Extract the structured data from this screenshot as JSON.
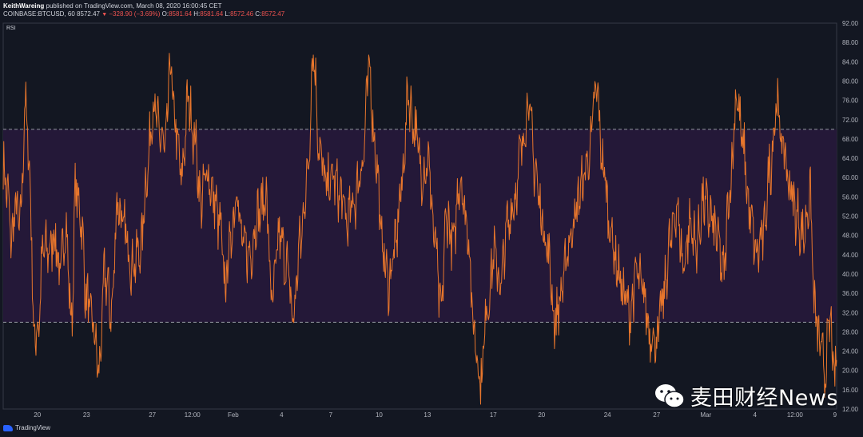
{
  "header": {
    "author": "KeithWareing",
    "published": "published on TradingView.com, March 08, 2020 16:00:45 CET",
    "symbol": "COINBASE:BTCUSD, 60",
    "price": "8572.47",
    "change": "−328.90 (−3.69%)",
    "o_label": "O:",
    "o": "8581.64",
    "h_label": "H:",
    "h": "8581.64",
    "l_label": "L:",
    "l": "8572.46",
    "c_label": "C:",
    "c": "8572.47"
  },
  "indicator_label": "RSI",
  "footer_logo": "TradingView",
  "watermark": "麦田财经News",
  "colors": {
    "background": "#131722",
    "band": "#241838",
    "line": "#e8762c",
    "axis_text": "#b2b5be"
  },
  "chart_data": {
    "type": "line",
    "title": "",
    "xlabel": "",
    "ylabel": "",
    "ylim": [
      12,
      92
    ],
    "yticks": [
      "92.00",
      "88.00",
      "84.00",
      "80.00",
      "76.00",
      "72.00",
      "68.00",
      "64.00",
      "60.00",
      "56.00",
      "52.00",
      "48.00",
      "44.00",
      "40.00",
      "36.00",
      "32.00",
      "28.00",
      "24.00",
      "20.00",
      "16.00",
      "12.00"
    ],
    "band": [
      30,
      70
    ],
    "xticks": [
      {
        "label": "20",
        "t": 0.041
      },
      {
        "label": "23",
        "t": 0.1
      },
      {
        "label": "27",
        "t": 0.179
      },
      {
        "label": "12:00",
        "t": 0.227
      },
      {
        "label": "Feb",
        "t": 0.276
      },
      {
        "label": "4",
        "t": 0.334
      },
      {
        "label": "7",
        "t": 0.393
      },
      {
        "label": "10",
        "t": 0.451
      },
      {
        "label": "13",
        "t": 0.509
      },
      {
        "label": "17",
        "t": 0.588
      },
      {
        "label": "20",
        "t": 0.646
      },
      {
        "label": "24",
        "t": 0.725
      },
      {
        "label": "27",
        "t": 0.784
      },
      {
        "label": "Mar",
        "t": 0.843
      },
      {
        "label": "4",
        "t": 0.902
      },
      {
        "label": "12:00",
        "t": 0.95
      },
      {
        "label": "9",
        "t": 0.998
      }
    ],
    "series": [
      {
        "name": "",
        "keypoints": [
          [
            0,
            62
          ],
          [
            0.005,
            57
          ],
          [
            0.01,
            47
          ],
          [
            0.015,
            54
          ],
          [
            0.02,
            50
          ],
          [
            0.027,
            75
          ],
          [
            0.032,
            60
          ],
          [
            0.037,
            27
          ],
          [
            0.042,
            29
          ],
          [
            0.048,
            45
          ],
          [
            0.055,
            45
          ],
          [
            0.062,
            48
          ],
          [
            0.068,
            40
          ],
          [
            0.075,
            50
          ],
          [
            0.082,
            30
          ],
          [
            0.087,
            58
          ],
          [
            0.093,
            52
          ],
          [
            0.1,
            35
          ],
          [
            0.107,
            30
          ],
          [
            0.115,
            20
          ],
          [
            0.122,
            40
          ],
          [
            0.13,
            32
          ],
          [
            0.137,
            55
          ],
          [
            0.145,
            49
          ],
          [
            0.155,
            42
          ],
          [
            0.165,
            45
          ],
          [
            0.172,
            60
          ],
          [
            0.18,
            75
          ],
          [
            0.188,
            69
          ],
          [
            0.195,
            66
          ],
          [
            0.2,
            83
          ],
          [
            0.207,
            70
          ],
          [
            0.214,
            60
          ],
          [
            0.222,
            76
          ],
          [
            0.23,
            68
          ],
          [
            0.237,
            55
          ],
          [
            0.245,
            61
          ],
          [
            0.252,
            56
          ],
          [
            0.26,
            50
          ],
          [
            0.266,
            38
          ],
          [
            0.273,
            47
          ],
          [
            0.28,
            58
          ],
          [
            0.287,
            46
          ],
          [
            0.296,
            44
          ],
          [
            0.305,
            52
          ],
          [
            0.315,
            56
          ],
          [
            0.323,
            34
          ],
          [
            0.331,
            48
          ],
          [
            0.34,
            42
          ],
          [
            0.348,
            31
          ],
          [
            0.356,
            46
          ],
          [
            0.365,
            60
          ],
          [
            0.372,
            86
          ],
          [
            0.38,
            65
          ],
          [
            0.388,
            58
          ],
          [
            0.396,
            60
          ],
          [
            0.405,
            56
          ],
          [
            0.413,
            51
          ],
          [
            0.421,
            55
          ],
          [
            0.431,
            63
          ],
          [
            0.439,
            82
          ],
          [
            0.447,
            65
          ],
          [
            0.455,
            46
          ],
          [
            0.462,
            38
          ],
          [
            0.47,
            45
          ],
          [
            0.478,
            58
          ],
          [
            0.486,
            77
          ],
          [
            0.494,
            70
          ],
          [
            0.502,
            61
          ],
          [
            0.51,
            63
          ],
          [
            0.518,
            47
          ],
          [
            0.525,
            32
          ],
          [
            0.532,
            52
          ],
          [
            0.54,
            46
          ],
          [
            0.548,
            60
          ],
          [
            0.557,
            50
          ],
          [
            0.565,
            28
          ],
          [
            0.573,
            18
          ],
          [
            0.581,
            34
          ],
          [
            0.589,
            44
          ],
          [
            0.597,
            38
          ],
          [
            0.605,
            50
          ],
          [
            0.614,
            56
          ],
          [
            0.622,
            66
          ],
          [
            0.63,
            76
          ],
          [
            0.638,
            62
          ],
          [
            0.646,
            52
          ],
          [
            0.654,
            44
          ],
          [
            0.662,
            30
          ],
          [
            0.67,
            36
          ],
          [
            0.678,
            46
          ],
          [
            0.686,
            52
          ],
          [
            0.694,
            58
          ],
          [
            0.702,
            64
          ],
          [
            0.712,
            78
          ],
          [
            0.72,
            62
          ],
          [
            0.728,
            50
          ],
          [
            0.736,
            42
          ],
          [
            0.744,
            36
          ],
          [
            0.752,
            32
          ],
          [
            0.76,
            40
          ],
          [
            0.768,
            36
          ],
          [
            0.776,
            28
          ],
          [
            0.784,
            26
          ],
          [
            0.792,
            35
          ],
          [
            0.8,
            46
          ],
          [
            0.808,
            54
          ],
          [
            0.816,
            42
          ],
          [
            0.824,
            50
          ],
          [
            0.832,
            46
          ],
          [
            0.84,
            55
          ],
          [
            0.848,
            52
          ],
          [
            0.856,
            48
          ],
          [
            0.864,
            40
          ],
          [
            0.872,
            58
          ],
          [
            0.88,
            77
          ],
          [
            0.888,
            66
          ],
          [
            0.896,
            52
          ],
          [
            0.904,
            44
          ],
          [
            0.912,
            48
          ],
          [
            0.92,
            62
          ],
          [
            0.928,
            75
          ],
          [
            0.936,
            66
          ],
          [
            0.944,
            58
          ],
          [
            0.952,
            52
          ],
          [
            0.96,
            48
          ],
          [
            0.968,
            56
          ],
          [
            0.974,
            32
          ],
          [
            0.98,
            25
          ],
          [
            0.986,
            20
          ],
          [
            0.992,
            30
          ],
          [
            0.998,
            18
          ]
        ]
      }
    ],
    "grid": false,
    "legend": "none"
  }
}
